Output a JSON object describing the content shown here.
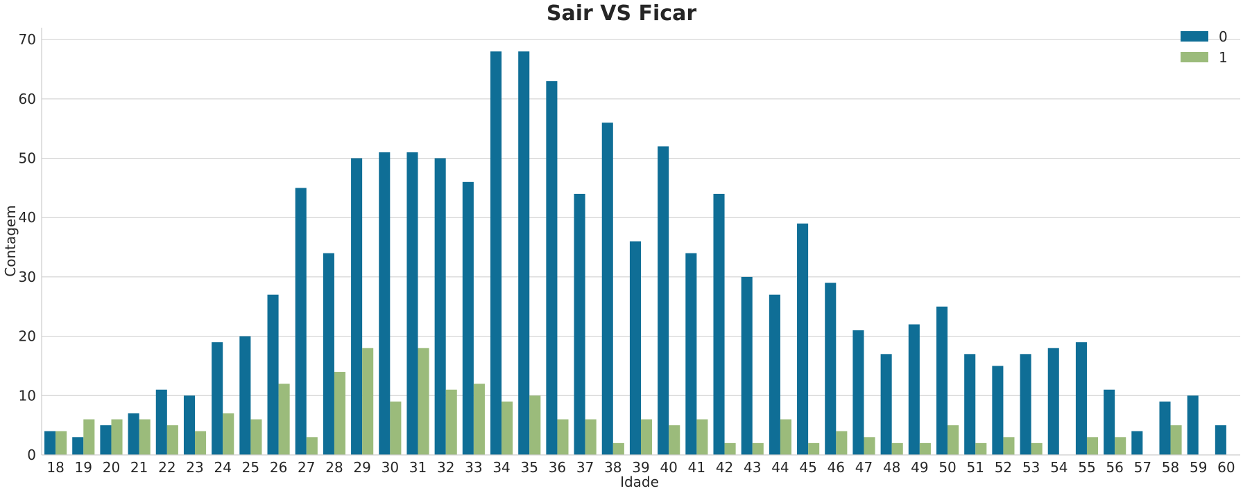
{
  "chart_data": {
    "type": "bar",
    "title": "Sair  VS  Ficar",
    "xlabel": "Idade",
    "ylabel": "Contagem",
    "ylim": [
      0,
      72
    ],
    "yticks": [
      0,
      10,
      20,
      30,
      40,
      50,
      60,
      70
    ],
    "grid": "horizontal",
    "legend_placement": "top-right",
    "categories": [
      "18",
      "19",
      "20",
      "21",
      "22",
      "23",
      "24",
      "25",
      "26",
      "27",
      "28",
      "29",
      "30",
      "31",
      "32",
      "33",
      "34",
      "35",
      "36",
      "37",
      "38",
      "39",
      "40",
      "41",
      "42",
      "43",
      "44",
      "45",
      "46",
      "47",
      "48",
      "49",
      "50",
      "51",
      "52",
      "53",
      "54",
      "55",
      "56",
      "57",
      "58",
      "59",
      "60"
    ],
    "series": [
      {
        "name": "0",
        "color": "#0f6e96",
        "values": [
          4,
          3,
          5,
          7,
          11,
          10,
          19,
          20,
          27,
          45,
          34,
          50,
          51,
          51,
          50,
          46,
          68,
          68,
          63,
          44,
          56,
          36,
          52,
          34,
          44,
          30,
          27,
          39,
          29,
          21,
          17,
          22,
          25,
          17,
          15,
          17,
          18,
          19,
          11,
          4,
          9,
          10,
          5
        ]
      },
      {
        "name": "1",
        "color": "#9bbb7b",
        "values": [
          4,
          6,
          6,
          6,
          5,
          4,
          7,
          6,
          12,
          3,
          14,
          18,
          9,
          18,
          11,
          12,
          9,
          10,
          6,
          6,
          2,
          6,
          5,
          6,
          2,
          2,
          6,
          2,
          4,
          3,
          2,
          2,
          5,
          2,
          3,
          2,
          0,
          3,
          3,
          0,
          5,
          0,
          0
        ]
      }
    ]
  }
}
